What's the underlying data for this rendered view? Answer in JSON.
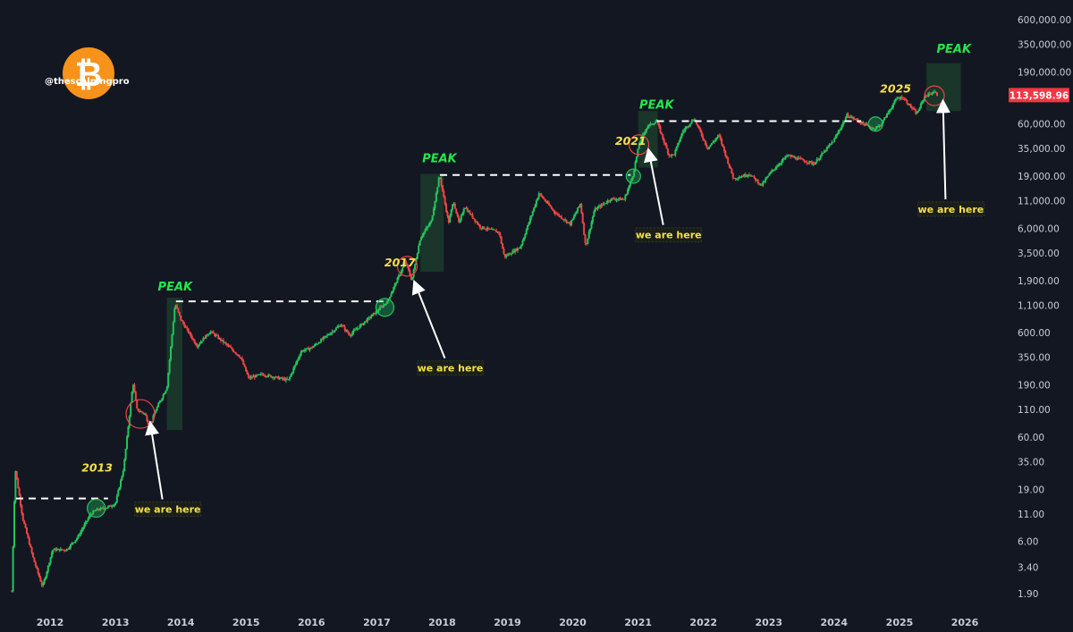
{
  "brand": {
    "handle": "@thescalpingpro",
    "logo_icon": "bitcoin-logo-icon",
    "logo_color": "#f7931a",
    "logo_glyph": "₿"
  },
  "colors": {
    "background": "#131722",
    "up": "#22c55e",
    "down": "#ef4444",
    "peak_text": "#22e84a",
    "year_text": "#f5e04b",
    "price_badge": "#f23645",
    "peak_box": "#1c3b2c"
  },
  "chart_data": {
    "type": "candlestick",
    "title": "",
    "xlabel": "",
    "ylabel": "",
    "y_scale": "log",
    "ylim": [
      1.5,
      800000
    ],
    "x_ticks": [
      "2012",
      "2013",
      "2014",
      "2015",
      "2016",
      "2017",
      "2018",
      "2019",
      "2020",
      "2021",
      "2022",
      "2023",
      "2024",
      "2025",
      "2026"
    ],
    "y_ticks": [
      "600,000.00",
      "350,000.00",
      "190,000.00",
      "60,000.00",
      "35,000.00",
      "19,000.00",
      "11,000.00",
      "6,000.00",
      "3,500.00",
      "1,900.00",
      "1,100.00",
      "600.00",
      "350.00",
      "190.00",
      "110.00",
      "60.00",
      "35.00",
      "19.00",
      "11.00",
      "6.00",
      "3.40",
      "1.90"
    ],
    "current_price": "113,598.96",
    "price_path": [
      {
        "x": "2011-06-01",
        "y": 2
      },
      {
        "x": "2011-06-20",
        "y": 30
      },
      {
        "x": "2011-08-01",
        "y": 10
      },
      {
        "x": "2011-10-01",
        "y": 4
      },
      {
        "x": "2011-11-20",
        "y": 2.2
      },
      {
        "x": "2012-01-15",
        "y": 5
      },
      {
        "x": "2012-04-01",
        "y": 5
      },
      {
        "x": "2012-06-01",
        "y": 6.5
      },
      {
        "x": "2012-08-15",
        "y": 11
      },
      {
        "x": "2012-09-15",
        "y": 12
      },
      {
        "x": "2012-12-01",
        "y": 13
      },
      {
        "x": "2013-01-01",
        "y": 14
      },
      {
        "x": "2013-02-15",
        "y": 30
      },
      {
        "x": "2013-04-09",
        "y": 200
      },
      {
        "x": "2013-05-01",
        "y": 110
      },
      {
        "x": "2013-06-15",
        "y": 100
      },
      {
        "x": "2013-07-10",
        "y": 75
      },
      {
        "x": "2013-08-15",
        "y": 110
      },
      {
        "x": "2013-10-15",
        "y": 180
      },
      {
        "x": "2013-11-30",
        "y": 1150
      },
      {
        "x": "2014-01-01",
        "y": 800
      },
      {
        "x": "2014-04-01",
        "y": 450
      },
      {
        "x": "2014-06-15",
        "y": 620
      },
      {
        "x": "2014-09-01",
        "y": 480
      },
      {
        "x": "2014-12-01",
        "y": 350
      },
      {
        "x": "2015-01-15",
        "y": 220
      },
      {
        "x": "2015-04-01",
        "y": 240
      },
      {
        "x": "2015-08-25",
        "y": 210
      },
      {
        "x": "2015-11-05",
        "y": 400
      },
      {
        "x": "2016-01-01",
        "y": 430
      },
      {
        "x": "2016-06-15",
        "y": 720
      },
      {
        "x": "2016-08-01",
        "y": 570
      },
      {
        "x": "2016-12-31",
        "y": 960
      },
      {
        "x": "2017-03-01",
        "y": 1200
      },
      {
        "x": "2017-06-10",
        "y": 2900
      },
      {
        "x": "2017-07-15",
        "y": 1900
      },
      {
        "x": "2017-09-01",
        "y": 4900
      },
      {
        "x": "2017-11-01",
        "y": 7000
      },
      {
        "x": "2017-12-17",
        "y": 19500
      },
      {
        "x": "2018-02-06",
        "y": 6800
      },
      {
        "x": "2018-03-05",
        "y": 11000
      },
      {
        "x": "2018-04-06",
        "y": 6600
      },
      {
        "x": "2018-05-05",
        "y": 9800
      },
      {
        "x": "2018-08-01",
        "y": 6200
      },
      {
        "x": "2018-11-15",
        "y": 5500
      },
      {
        "x": "2018-12-15",
        "y": 3200
      },
      {
        "x": "2019-03-15",
        "y": 4000
      },
      {
        "x": "2019-06-26",
        "y": 13000
      },
      {
        "x": "2019-09-24",
        "y": 8500
      },
      {
        "x": "2019-12-18",
        "y": 6600
      },
      {
        "x": "2020-02-13",
        "y": 10400
      },
      {
        "x": "2020-03-13",
        "y": 4000
      },
      {
        "x": "2020-05-01",
        "y": 9000
      },
      {
        "x": "2020-08-01",
        "y": 11500
      },
      {
        "x": "2020-10-15",
        "y": 11400
      },
      {
        "x": "2020-12-01",
        "y": 19000
      },
      {
        "x": "2021-01-08",
        "y": 40000
      },
      {
        "x": "2021-02-21",
        "y": 57000
      },
      {
        "x": "2021-04-14",
        "y": 64000
      },
      {
        "x": "2021-06-22",
        "y": 30000
      },
      {
        "x": "2021-07-20",
        "y": 30500
      },
      {
        "x": "2021-09-07",
        "y": 51000
      },
      {
        "x": "2021-11-10",
        "y": 68000
      },
      {
        "x": "2022-01-24",
        "y": 35000
      },
      {
        "x": "2022-03-28",
        "y": 47000
      },
      {
        "x": "2022-06-18",
        "y": 18000
      },
      {
        "x": "2022-09-15",
        "y": 20000
      },
      {
        "x": "2022-11-21",
        "y": 15500
      },
      {
        "x": "2023-01-15",
        "y": 21000
      },
      {
        "x": "2023-04-15",
        "y": 30000
      },
      {
        "x": "2023-09-11",
        "y": 25000
      },
      {
        "x": "2023-12-31",
        "y": 42000
      },
      {
        "x": "2024-03-14",
        "y": 73000
      },
      {
        "x": "2024-08-05",
        "y": 54000
      },
      {
        "x": "2024-09-15",
        "y": 58000
      },
      {
        "x": "2024-12-17",
        "y": 106000
      },
      {
        "x": "2025-01-20",
        "y": 108000
      },
      {
        "x": "2025-04-07",
        "y": 75000
      },
      {
        "x": "2025-05-22",
        "y": 111000
      },
      {
        "x": "2025-07-14",
        "y": 122000
      },
      {
        "x": "2025-08-01",
        "y": 113598.96
      }
    ],
    "annotations": {
      "peaks": [
        {
          "label": "PEAK",
          "date": "2013-11-30",
          "price": 1150
        },
        {
          "label": "PEAK",
          "date": "2017-12-17",
          "price": 19500
        },
        {
          "label": "PEAK",
          "date": "2021-04-14",
          "price": 64000
        },
        {
          "label": "PEAK",
          "date": "2025-11-01",
          "price": 220000
        }
      ],
      "cycle_years": [
        {
          "label": "2013",
          "date": "2012-09-20",
          "price": 28
        },
        {
          "label": "2017",
          "date": "2017-05-10",
          "price": 2600
        },
        {
          "label": "2021",
          "date": "2020-11-20",
          "price": 38000
        },
        {
          "label": "2025",
          "date": "2024-12-10",
          "price": 120000
        }
      ],
      "callouts": [
        {
          "label": "we are here",
          "date": "2013-10-20",
          "price": 12
        },
        {
          "label": "we are here",
          "date": "2018-02-15",
          "price": 270
        },
        {
          "label": "we are here",
          "date": "2021-06-20",
          "price": 5100
        },
        {
          "label": "we are here",
          "date": "2025-10-15",
          "price": 9000
        }
      ]
    }
  }
}
